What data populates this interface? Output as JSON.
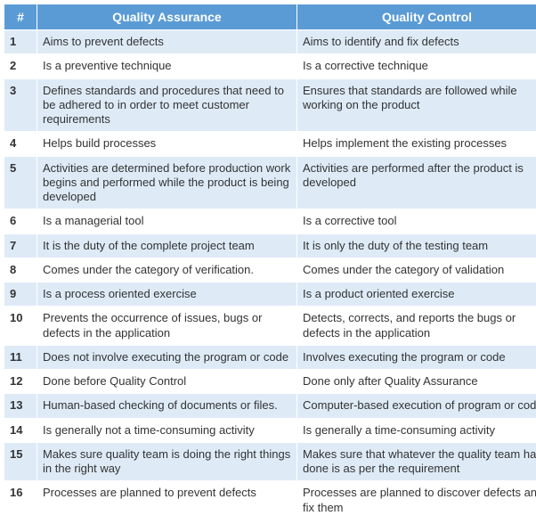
{
  "header": {
    "num": "#",
    "qa": "Quality Assurance",
    "qc": "Quality Control"
  },
  "header_bg": "#5b9bd5",
  "header_fg": "#ffffff",
  "row_odd_bg": "#deebf7",
  "row_even_bg": "#ffffff",
  "font_size_body": 13,
  "font_size_header": 14,
  "rows": [
    {
      "n": "1",
      "qa": "Aims to prevent defects",
      "qc": "Aims to identify and fix defects"
    },
    {
      "n": "2",
      "qa": "Is a preventive technique",
      "qc": "Is a corrective technique"
    },
    {
      "n": "3",
      "qa": "Defines standards and procedures that need to be adhered to in order to meet customer requirements",
      "qc": "Ensures that standards are followed while working on the product"
    },
    {
      "n": "4",
      "qa": "Helps build processes",
      "qc": "Helps implement the existing processes"
    },
    {
      "n": "5",
      "qa": "Activities are determined before production work begins and performed while the product is being developed",
      "qc": "Activities are performed after the product is developed"
    },
    {
      "n": "6",
      "qa": "Is a managerial tool",
      "qc": "Is a corrective tool"
    },
    {
      "n": "7",
      "qa": "It is the duty of the complete project team",
      "qc": "It is only the duty of the testing team"
    },
    {
      "n": "8",
      "qa": "Comes under the category of verification.",
      "qc": "Comes under the category of validation"
    },
    {
      "n": "9",
      "qa": "Is a process oriented exercise",
      "qc": "Is a product oriented exercise"
    },
    {
      "n": "10",
      "qa": "Prevents the occurrence of issues, bugs or defects in the application",
      "qc": "Detects, corrects, and reports the bugs or defects in the application"
    },
    {
      "n": "11",
      "qa": "Does not involve executing the program or code",
      "qc": "Involves executing the program or code"
    },
    {
      "n": "12",
      "qa": "Done before Quality Control",
      "qc": "Done only after Quality Assurance"
    },
    {
      "n": "13",
      "qa": "Human-based checking of documents or files.",
      "qc": "Computer-based execution of program or code"
    },
    {
      "n": "14",
      "qa": "Is generally not a time-consuming activity",
      "qc": "Is generally a time-consuming activity"
    },
    {
      "n": "15",
      "qa": "Makes sure quality team is doing the right things in the right way",
      "qc": "Makes sure that whatever the quality team has done is as per the requirement"
    },
    {
      "n": "16",
      "qa": "Processes are planned to prevent defects",
      "qc": "Processes are planned to discover defects and fix them"
    }
  ]
}
